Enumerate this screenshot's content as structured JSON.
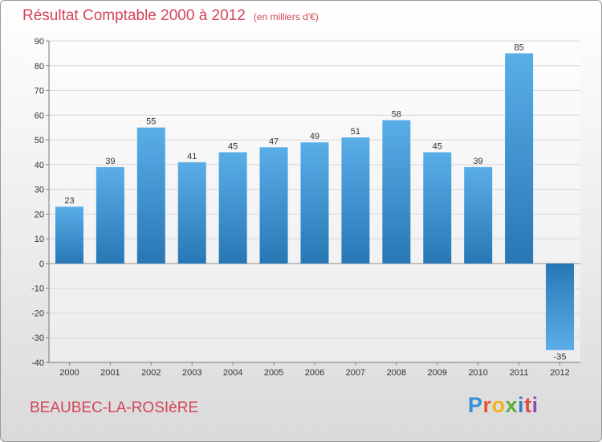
{
  "title": "Résultat Comptable 2000 à 2012",
  "unit": "(en milliers d'€)",
  "place": "BEAUBEC-LA-ROSIèRE",
  "logo": {
    "letters": [
      "P",
      "r",
      "o",
      "x",
      "i",
      "t",
      "i"
    ],
    "colors": [
      "#3b8fd6",
      "#e8552d",
      "#f2b21c",
      "#5fae3e",
      "#2f7fc4",
      "#e24a4a",
      "#8c4ba8"
    ]
  },
  "colors": {
    "accent": "#d4435a",
    "bar_light": "#5aaee8",
    "bar_dark": "#2877b5",
    "grid": "#d8d8d8"
  },
  "chart_data": {
    "type": "bar",
    "title": "Résultat Comptable 2000 à 2012",
    "xlabel": "",
    "ylabel": "",
    "grid": true,
    "ylim": [
      -40,
      90
    ],
    "yticks": [
      90,
      80,
      70,
      60,
      50,
      40,
      30,
      20,
      10,
      0,
      -10,
      -20,
      -30,
      -40
    ],
    "categories": [
      "2000",
      "2001",
      "2002",
      "2003",
      "2004",
      "2005",
      "2006",
      "2007",
      "2008",
      "2009",
      "2010",
      "2011",
      "2012"
    ],
    "values": [
      23,
      39,
      55,
      41,
      45,
      47,
      49,
      51,
      58,
      45,
      39,
      85,
      -35
    ]
  }
}
